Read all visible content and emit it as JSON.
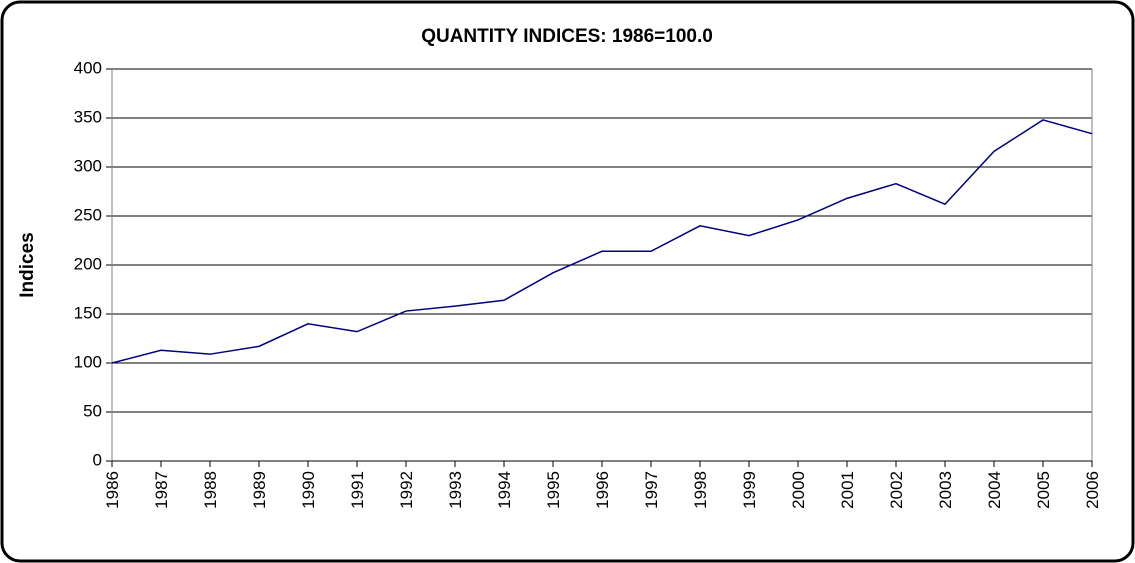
{
  "chart_data": {
    "type": "line",
    "title": "QUANTITY INDICES: 1986=100.0",
    "y_label": "Indices",
    "categories": [
      "1986",
      "1987",
      "1988",
      "1989",
      "1990",
      "1991",
      "1992",
      "1993",
      "1994",
      "1995",
      "1996",
      "1997",
      "1998",
      "1999",
      "2000",
      "2001",
      "2002",
      "2003",
      "2004",
      "2005",
      "2006"
    ],
    "series": [
      {
        "name": "Quantity index",
        "color": "#000080",
        "values": [
          100,
          113,
          109,
          117,
          140,
          132,
          153,
          158,
          164,
          192,
          214,
          214,
          240,
          230,
          246,
          268,
          283,
          262,
          316,
          348,
          334
        ]
      }
    ],
    "ylim": [
      0,
      400
    ],
    "yticks": [
      0,
      50,
      100,
      150,
      200,
      250,
      300,
      350,
      400
    ],
    "grid": true
  }
}
